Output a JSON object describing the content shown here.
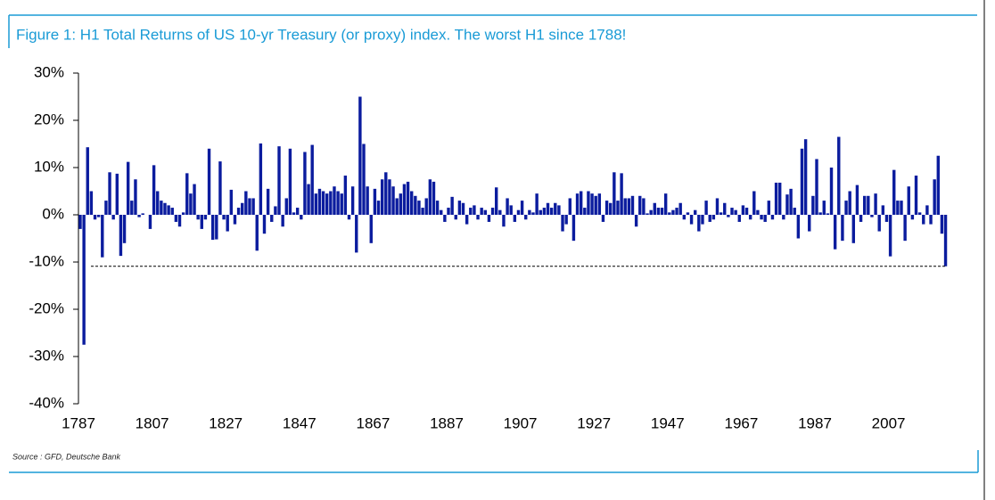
{
  "chart_data": {
    "type": "bar",
    "title": "Figure 1: H1 Total Returns of US 10-yr Treasury (or proxy) index. The worst H1 since 1788!",
    "source": "Source : GFD, Deutsche Bank",
    "color": "#0b1c9e",
    "categories": [
      "1787",
      null,
      null,
      null,
      null,
      null,
      null,
      null,
      null,
      null,
      null,
      null,
      null,
      null,
      null,
      null,
      null,
      null,
      null,
      null,
      "1807",
      null,
      null,
      null,
      null,
      null,
      null,
      null,
      null,
      null,
      null,
      null,
      null,
      null,
      null,
      null,
      null,
      null,
      null,
      null,
      "1827",
      null,
      null,
      null,
      null,
      null,
      null,
      null,
      null,
      null,
      null,
      null,
      null,
      null,
      null,
      null,
      null,
      null,
      null,
      null,
      "1847",
      null,
      null,
      null,
      null,
      null,
      null,
      null,
      null,
      null,
      null,
      null,
      null,
      null,
      null,
      null,
      null,
      null,
      null,
      null,
      "1867",
      null,
      null,
      null,
      null,
      null,
      null,
      null,
      null,
      null,
      null,
      null,
      null,
      null,
      null,
      null,
      null,
      null,
      null,
      null,
      "1887",
      null,
      null,
      null,
      null,
      null,
      null,
      null,
      null,
      null,
      null,
      null,
      null,
      null,
      null,
      null,
      null,
      null,
      null,
      null,
      "1907",
      null,
      null,
      null,
      null,
      null,
      null,
      null,
      null,
      null,
      null,
      null,
      null,
      null,
      null,
      null,
      null,
      null,
      null,
      null,
      "1927",
      null,
      null,
      null,
      null,
      null,
      null,
      null,
      null,
      null,
      null,
      null,
      null,
      null,
      null,
      null,
      null,
      null,
      null,
      null,
      "1947",
      null,
      null,
      null,
      null,
      null,
      null,
      null,
      null,
      null,
      null,
      null,
      null,
      null,
      null,
      null,
      null,
      null,
      null,
      null,
      "1967",
      null,
      null,
      null,
      null,
      null,
      null,
      null,
      null,
      null,
      null,
      null,
      null,
      null,
      null,
      null,
      null,
      null,
      null,
      null,
      "1987",
      null,
      null,
      null,
      null,
      null,
      null,
      null,
      null,
      null,
      null,
      null,
      null,
      null,
      null,
      null,
      null,
      null,
      null,
      null,
      "2007",
      null,
      null,
      null,
      null,
      null,
      null,
      null,
      null,
      null,
      null,
      null,
      null,
      null,
      null,
      null
    ],
    "values": [
      -3,
      -27.5,
      14.3,
      5,
      -1,
      -0.5,
      -9,
      3,
      9,
      -1,
      8.7,
      -8.7,
      -6,
      11.2,
      3,
      7.5,
      -0.5,
      0.3,
      0,
      -3,
      10.5,
      5,
      3,
      2.5,
      2,
      1.5,
      -1.5,
      -2.5,
      0.5,
      8.8,
      4.5,
      6.5,
      -1,
      -3,
      -1,
      14,
      -5.3,
      -5.2,
      11.3,
      -1,
      -3.5,
      5.3,
      -2,
      1.5,
      2.5,
      5,
      3.5,
      3.5,
      -7.6,
      15.1,
      -4,
      5.5,
      -1.5,
      1.8,
      14.5,
      -2.5,
      3.5,
      14,
      0.5,
      1.5,
      -1,
      13.3,
      6.5,
      14.8,
      4.5,
      5.5,
      5,
      4.5,
      5,
      6,
      5,
      4.5,
      8.3,
      -1,
      6,
      -8,
      25,
      15,
      6,
      -6,
      5.5,
      3,
      7.5,
      9,
      7.5,
      6,
      3.5,
      4.5,
      6.5,
      7,
      5,
      4,
      3,
      1.5,
      3.5,
      7.5,
      7,
      3,
      1,
      -1.5,
      1.5,
      3.8,
      -1,
      3,
      2.5,
      -2,
      1.5,
      2,
      -1,
      1.5,
      1,
      -1.5,
      1.5,
      5.8,
      1,
      -2.5,
      3.5,
      2,
      -1.5,
      1,
      3,
      -1,
      1,
      0.5,
      4.5,
      1,
      1.5,
      2.5,
      1.5,
      2.5,
      2,
      -3.5,
      -2,
      3.5,
      -5.5,
      4.5,
      5,
      1.5,
      5,
      4.5,
      4,
      4.5,
      -1.5,
      3,
      2.5,
      9,
      3,
      8.8,
      3.5,
      3.5,
      4,
      -2.5,
      4,
      3.5,
      0.3,
      1,
      2.5,
      1.5,
      1.5,
      4.5,
      0.5,
      1,
      1.5,
      2.5,
      -1,
      0.5,
      -2,
      1,
      -3.5,
      -2,
      3,
      -1.5,
      -1,
      3.5,
      0.5,
      2.5,
      -0.5,
      1.5,
      1,
      -1.5,
      2,
      1.5,
      -1,
      5,
      1,
      -1,
      -1.5,
      3,
      -1,
      6.8,
      6.8,
      -1,
      4.3,
      5.5,
      1.5,
      -5,
      14,
      16,
      -3.5,
      4,
      11.8,
      0.5,
      3,
      0.3,
      10,
      -7.3,
      16.5,
      -5.5,
      3,
      5,
      -6,
      6.3,
      -1.5,
      4,
      4,
      -0.5,
      4.5,
      -3.5,
      2,
      -1.5,
      -8.8,
      9.5,
      3,
      3,
      -5.5,
      6,
      -1,
      8.3,
      0.5,
      -2,
      2,
      -2,
      7.5,
      12.5,
      -4,
      -10.9
    ],
    "hline": -10.9,
    "ylim": [
      -40,
      30
    ],
    "yticks": [
      {
        "value": -40,
        "label": "-40%"
      },
      {
        "value": -30,
        "label": "-30%"
      },
      {
        "value": -20,
        "label": "-20%"
      },
      {
        "value": -10,
        "label": "-10%"
      },
      {
        "value": 0,
        "label": "0%"
      },
      {
        "value": 10,
        "label": "10%"
      },
      {
        "value": 20,
        "label": "20%"
      },
      {
        "value": 30,
        "label": "30%"
      }
    ]
  }
}
